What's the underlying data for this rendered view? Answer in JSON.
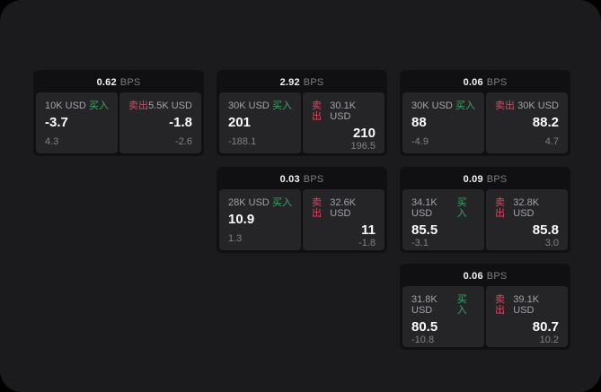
{
  "app": {
    "bps_suffix": "BPS",
    "buy_label": "买入",
    "sell_label": "卖出"
  },
  "colors": {
    "buy": "#3fa567",
    "sell": "#d84a62",
    "app_bg": "#1b1b1d",
    "card_bg": "#101012",
    "panel_bg": "#252528"
  },
  "cards": [
    {
      "bps": "0.62",
      "buy": {
        "amount": "10K USD",
        "value": "-3.7",
        "sub": "4.3"
      },
      "sell": {
        "amount": "5.5K USD",
        "value": "-1.8",
        "sub": "-2.6"
      }
    },
    {
      "bps": "2.92",
      "buy": {
        "amount": "30K USD",
        "value": "201",
        "sub": "-188.1"
      },
      "sell": {
        "amount": "30.1K USD",
        "value": "210",
        "sub": "196.5"
      }
    },
    {
      "bps": "0.06",
      "buy": {
        "amount": "30K USD",
        "value": "88",
        "sub": "-4.9"
      },
      "sell": {
        "amount": "30K USD",
        "value": "88.2",
        "sub": "4.7"
      }
    },
    {
      "bps": "0.03",
      "buy": {
        "amount": "28K USD",
        "value": "10.9",
        "sub": "1.3"
      },
      "sell": {
        "amount": "32.6K USD",
        "value": "11",
        "sub": "-1.8"
      }
    },
    {
      "bps": "0.09",
      "buy": {
        "amount": "34.1K USD",
        "value": "85.5",
        "sub": "-3.1"
      },
      "sell": {
        "amount": "32.8K USD",
        "value": "85.8",
        "sub": "3.0"
      }
    },
    {
      "bps": "0.06",
      "buy": {
        "amount": "31.8K USD",
        "value": "80.5",
        "sub": "-10.8"
      },
      "sell": {
        "amount": "39.1K USD",
        "value": "80.7",
        "sub": "10.2"
      }
    }
  ]
}
